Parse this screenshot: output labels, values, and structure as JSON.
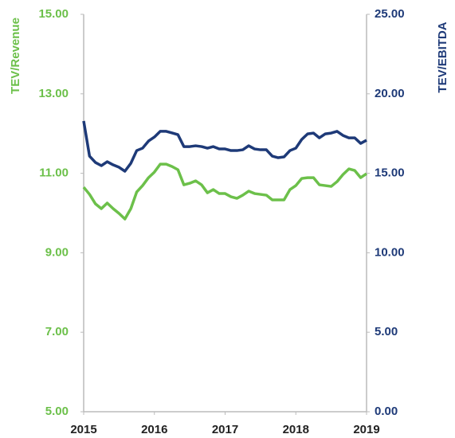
{
  "chart_data": {
    "type": "line",
    "x": [
      2015,
      2015.083,
      2015.167,
      2015.25,
      2015.333,
      2015.417,
      2015.5,
      2015.583,
      2015.667,
      2015.75,
      2015.833,
      2015.917,
      2016,
      2016.083,
      2016.167,
      2016.25,
      2016.333,
      2016.417,
      2016.5,
      2016.583,
      2016.667,
      2016.75,
      2016.833,
      2016.917,
      2017,
      2017.083,
      2017.167,
      2017.25,
      2017.333,
      2017.417,
      2017.5,
      2017.583,
      2017.667,
      2017.75,
      2017.833,
      2017.917,
      2018,
      2018.083,
      2018.167,
      2018.25,
      2018.333,
      2018.417,
      2018.5,
      2018.583,
      2018.667,
      2018.75,
      2018.833,
      2018.917,
      2019
    ],
    "series": [
      {
        "name": "TEV/Revenue",
        "color": "#6cc04a",
        "values": [
          10.65,
          10.47,
          10.23,
          10.11,
          10.25,
          10.11,
          9.99,
          9.85,
          10.11,
          10.53,
          10.69,
          10.89,
          11.03,
          11.23,
          11.23,
          11.17,
          11.09,
          10.71,
          10.75,
          10.81,
          10.71,
          10.51,
          10.59,
          10.49,
          10.49,
          10.41,
          10.37,
          10.45,
          10.55,
          10.49,
          10.47,
          10.45,
          10.33,
          10.33,
          10.33,
          10.59,
          10.69,
          10.87,
          10.89,
          10.89,
          10.71,
          10.69,
          10.67,
          10.79,
          10.97,
          11.11,
          11.07,
          10.89,
          10.99
        ]
      },
      {
        "name": "TEV/EBITDA",
        "color": "#1e3a78",
        "axis": "y2",
        "values": [
          18.29,
          16.08,
          15.68,
          15.48,
          15.73,
          15.53,
          15.38,
          15.13,
          15.63,
          16.43,
          16.58,
          17.03,
          17.28,
          17.64,
          17.64,
          17.54,
          17.43,
          16.68,
          16.68,
          16.73,
          16.68,
          16.58,
          16.68,
          16.53,
          16.53,
          16.43,
          16.43,
          16.48,
          16.73,
          16.53,
          16.48,
          16.48,
          16.08,
          15.98,
          16.03,
          16.43,
          16.58,
          17.13,
          17.48,
          17.53,
          17.23,
          17.48,
          17.53,
          17.64,
          17.38,
          17.23,
          17.23,
          16.88,
          17.08
        ]
      }
    ],
    "xlim": [
      2015,
      2019
    ],
    "xticks": [
      2015,
      2016,
      2017,
      2018,
      2019
    ],
    "ylim": [
      5,
      15
    ],
    "yticks": [
      {
        "value": 5,
        "label": "5.00"
      },
      {
        "value": 7,
        "label": "7.00"
      },
      {
        "value": 9,
        "label": "9.00"
      },
      {
        "value": 11,
        "label": "11.00"
      },
      {
        "value": 13,
        "label": "13.00"
      },
      {
        "value": 15,
        "label": "15.00"
      }
    ],
    "y2lim": [
      0,
      25
    ],
    "y2ticks": [
      {
        "value": 0,
        "label": "0.00"
      },
      {
        "value": 5,
        "label": "5.00"
      },
      {
        "value": 10,
        "label": "10.00"
      },
      {
        "value": 15,
        "label": "15.00"
      },
      {
        "value": 20,
        "label": "20.00"
      },
      {
        "value": 25,
        "label": "25.00"
      }
    ]
  }
}
